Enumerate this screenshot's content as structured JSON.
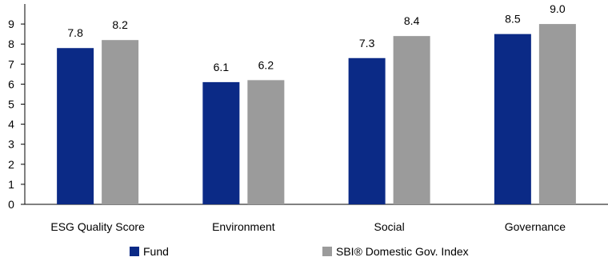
{
  "chart_data": {
    "type": "bar",
    "categories": [
      "ESG Quality Score",
      "Environment",
      "Social",
      "Governance"
    ],
    "series": [
      {
        "name": "Fund",
        "values": [
          7.8,
          6.1,
          7.3,
          8.5
        ],
        "color": "#0b2a86"
      },
      {
        "name": "SBI® Domestic Gov. Index",
        "values": [
          8.2,
          6.2,
          8.4,
          9.0
        ],
        "color": "#9b9b9b"
      }
    ],
    "value_labels": [
      [
        "7.8",
        "6.1",
        "7.3",
        "8.5"
      ],
      [
        "8.2",
        "6.2",
        "8.4",
        "9.0"
      ]
    ],
    "yticks": [
      0,
      1,
      2,
      3,
      4,
      5,
      6,
      7,
      8,
      9
    ],
    "ylim": [
      0,
      10
    ],
    "grid": false,
    "legend_position": "bottom"
  }
}
